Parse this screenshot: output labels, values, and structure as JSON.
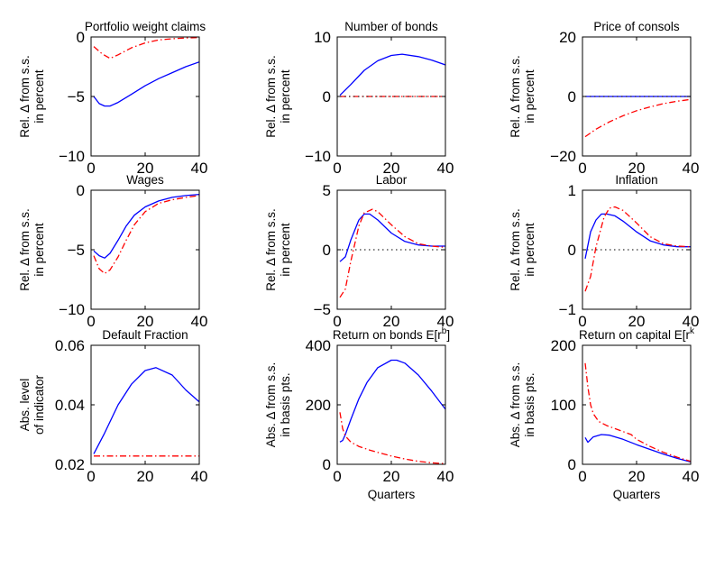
{
  "chart_data": [
    {
      "type": "line",
      "title": "Portfolio weight claims",
      "ylabel": [
        "Rel. Δ from s.s.",
        "in percent"
      ],
      "xlabel": "",
      "xlim": [
        0,
        40
      ],
      "ylim": [
        -10,
        0
      ],
      "xticks": [
        0,
        20,
        40
      ],
      "xtick_labels": [
        "0",
        "20",
        "40"
      ],
      "yticks": [
        -10,
        -5,
        0
      ],
      "ytick_labels": [
        "−10",
        "−5",
        "0"
      ],
      "colors": {
        "blue": "#0000ff",
        "red": "#ff0000"
      },
      "zero_line": false,
      "series": [
        {
          "color": "blue",
          "style": "solid",
          "x": [
            1,
            3,
            5,
            7,
            10,
            15,
            20,
            25,
            30,
            35,
            40
          ],
          "y": [
            -5.0,
            -5.6,
            -5.8,
            -5.8,
            -5.5,
            -4.8,
            -4.1,
            -3.5,
            -3.0,
            -2.5,
            -2.1
          ]
        },
        {
          "color": "red",
          "style": "dashdot",
          "x": [
            1,
            4,
            7,
            10,
            15,
            20,
            25,
            30,
            35,
            40
          ],
          "y": [
            -0.8,
            -1.4,
            -1.8,
            -1.5,
            -0.9,
            -0.5,
            -0.25,
            -0.15,
            -0.08,
            -0.05
          ]
        }
      ]
    },
    {
      "type": "line",
      "title": "Number of bonds",
      "ylabel": [
        "Rel. Δ from s.s.",
        "in percent"
      ],
      "xlabel": "",
      "xlim": [
        0,
        40
      ],
      "ylim": [
        -10,
        10
      ],
      "xticks": [
        0,
        20,
        40
      ],
      "xtick_labels": [
        "0",
        "20",
        "40"
      ],
      "yticks": [
        -10,
        0,
        10
      ],
      "ytick_labels": [
        "−10",
        "0",
        "10"
      ],
      "colors": {
        "blue": "#0000ff",
        "red": "#ff0000"
      },
      "zero_line": false,
      "series": [
        {
          "color": "blue",
          "style": "solid",
          "x": [
            1,
            5,
            10,
            15,
            20,
            24,
            30,
            35,
            40
          ],
          "y": [
            0.2,
            2.0,
            4.4,
            6.0,
            6.9,
            7.1,
            6.7,
            6.1,
            5.3
          ]
        },
        {
          "color": "red",
          "style": "dashdot",
          "x": [
            1,
            40
          ],
          "y": [
            0,
            0
          ]
        },
        {
          "color": "black",
          "style": "dotted",
          "x": [
            1,
            40
          ],
          "y": [
            0,
            0
          ]
        }
      ]
    },
    {
      "type": "line",
      "title": "Price of consols",
      "ylabel": [
        "Rel. Δ from s.s.",
        "in percent"
      ],
      "xlabel": "",
      "xlim": [
        0,
        40
      ],
      "ylim": [
        -20,
        20
      ],
      "xticks": [
        0,
        20,
        40
      ],
      "xtick_labels": [
        "0",
        "20",
        "40"
      ],
      "yticks": [
        -20,
        0,
        20
      ],
      "ytick_labels": [
        "−20",
        "0",
        "20"
      ],
      "colors": {
        "blue": "#0000ff",
        "red": "#ff0000"
      },
      "zero_line": false,
      "series": [
        {
          "color": "blue",
          "style": "solid",
          "x": [
            1,
            40
          ],
          "y": [
            0,
            0
          ]
        },
        {
          "color": "black",
          "style": "dotted",
          "x": [
            1,
            40
          ],
          "y": [
            0,
            0
          ]
        },
        {
          "color": "red",
          "style": "dashdot",
          "x": [
            1,
            5,
            10,
            15,
            20,
            25,
            30,
            35,
            40
          ],
          "y": [
            -13.5,
            -11.0,
            -8.5,
            -6.5,
            -4.8,
            -3.5,
            -2.4,
            -1.6,
            -1.0
          ]
        }
      ]
    },
    {
      "type": "line",
      "title": "Wages",
      "ylabel": [
        "Rel. Δ from s.s.",
        "in percent"
      ],
      "xlabel": "",
      "xlim": [
        0,
        40
      ],
      "ylim": [
        -10,
        0
      ],
      "xticks": [
        0,
        20,
        40
      ],
      "xtick_labels": [
        "0",
        "20",
        "40"
      ],
      "yticks": [
        -10,
        -5,
        0
      ],
      "ytick_labels": [
        "−10",
        "−5",
        "0"
      ],
      "colors": {
        "blue": "#0000ff",
        "red": "#ff0000"
      },
      "zero_line": true,
      "series": [
        {
          "color": "blue",
          "style": "solid",
          "x": [
            1,
            3,
            5,
            7,
            10,
            13,
            16,
            20,
            25,
            30,
            35,
            40
          ],
          "y": [
            -5.1,
            -5.5,
            -5.7,
            -5.3,
            -4.2,
            -3.0,
            -2.1,
            -1.4,
            -0.9,
            -0.6,
            -0.45,
            -0.35
          ]
        },
        {
          "color": "red",
          "style": "dashdot",
          "x": [
            1,
            3,
            5,
            7,
            10,
            13,
            16,
            20,
            25,
            30,
            35,
            40
          ],
          "y": [
            -5.5,
            -6.6,
            -7.0,
            -6.7,
            -5.6,
            -4.2,
            -2.9,
            -1.8,
            -1.1,
            -0.8,
            -0.6,
            -0.45
          ]
        }
      ]
    },
    {
      "type": "line",
      "title": "Labor",
      "ylabel": [
        "Rel. Δ from s.s.",
        "in percent"
      ],
      "xlabel": "",
      "xlim": [
        0,
        40
      ],
      "ylim": [
        -5,
        5
      ],
      "xticks": [
        0,
        20,
        40
      ],
      "xtick_labels": [
        "0",
        "20",
        "40"
      ],
      "yticks": [
        -5,
        0,
        5
      ],
      "ytick_labels": [
        "−5",
        "0",
        "5"
      ],
      "colors": {
        "blue": "#0000ff",
        "red": "#ff0000"
      },
      "zero_line": true,
      "series": [
        {
          "color": "blue",
          "style": "solid",
          "x": [
            1,
            3,
            5,
            8,
            10,
            12,
            15,
            20,
            25,
            30,
            35,
            40
          ],
          "y": [
            -1.0,
            -0.6,
            0.8,
            2.5,
            3.0,
            3.0,
            2.5,
            1.4,
            0.7,
            0.4,
            0.3,
            0.3
          ]
        },
        {
          "color": "red",
          "style": "dashdot",
          "x": [
            1,
            3,
            5,
            8,
            10,
            13,
            15,
            20,
            25,
            30,
            35,
            40
          ],
          "y": [
            -4.0,
            -3.3,
            -1.0,
            2.0,
            3.1,
            3.4,
            3.2,
            2.1,
            1.1,
            0.5,
            0.3,
            0.2
          ]
        }
      ]
    },
    {
      "type": "line",
      "title": "Inflation",
      "ylabel": [
        "Rel. Δ from s.s.",
        "in percent"
      ],
      "xlabel": "",
      "xlim": [
        0,
        40
      ],
      "ylim": [
        -1,
        1
      ],
      "xticks": [
        0,
        20,
        40
      ],
      "xtick_labels": [
        "0",
        "20",
        "40"
      ],
      "yticks": [
        -1,
        0,
        1
      ],
      "ytick_labels": [
        "−1",
        "0",
        "1"
      ],
      "colors": {
        "blue": "#0000ff",
        "red": "#ff0000"
      },
      "zero_line": true,
      "series": [
        {
          "color": "blue",
          "style": "solid",
          "x": [
            1,
            3,
            5,
            7,
            9,
            12,
            15,
            20,
            25,
            30,
            35,
            40
          ],
          "y": [
            -0.15,
            0.3,
            0.5,
            0.6,
            0.6,
            0.57,
            0.48,
            0.3,
            0.15,
            0.08,
            0.05,
            0.05
          ]
        },
        {
          "color": "red",
          "style": "dashdot",
          "x": [
            1,
            3,
            5,
            8,
            10,
            12,
            15,
            20,
            25,
            30,
            35,
            40
          ],
          "y": [
            -0.7,
            -0.45,
            0.05,
            0.55,
            0.7,
            0.72,
            0.66,
            0.45,
            0.22,
            0.1,
            0.06,
            0.05
          ]
        }
      ]
    },
    {
      "type": "line",
      "title": "Default Fraction",
      "ylabel": [
        "Abs. level",
        "of indicator"
      ],
      "xlabel": "",
      "xlim": [
        0,
        40
      ],
      "ylim": [
        0.02,
        0.06
      ],
      "xticks": [
        0,
        20,
        40
      ],
      "xtick_labels": [
        "0",
        "20",
        "40"
      ],
      "yticks": [
        0.02,
        0.04,
        0.06
      ],
      "ytick_labels": [
        "0.02",
        "0.04",
        "0.06"
      ],
      "colors": {
        "blue": "#0000ff",
        "red": "#ff0000"
      },
      "zero_line": false,
      "series": [
        {
          "color": "blue",
          "style": "solid",
          "x": [
            1,
            5,
            10,
            15,
            20,
            24,
            30,
            35,
            40
          ],
          "y": [
            0.0235,
            0.0305,
            0.04,
            0.047,
            0.0515,
            0.0525,
            0.05,
            0.045,
            0.041
          ]
        },
        {
          "color": "red",
          "style": "dashdot",
          "x": [
            1,
            40
          ],
          "y": [
            0.0228,
            0.0228
          ]
        }
      ]
    },
    {
      "type": "line",
      "title": "Return on bonds E[r^b]",
      "title_main": "Return on bonds E[r",
      "title_sup": "b",
      "title_end": "]",
      "ylabel": [
        "Abs. Δ from s.s.",
        "in basis pts."
      ],
      "xlabel": "Quarters",
      "xlim": [
        0,
        40
      ],
      "ylim": [
        0,
        400
      ],
      "xticks": [
        0,
        20,
        40
      ],
      "xtick_labels": [
        "0",
        "20",
        "40"
      ],
      "yticks": [
        0,
        200,
        400
      ],
      "ytick_labels": [
        "0",
        "200",
        "400"
      ],
      "colors": {
        "blue": "#0000ff",
        "red": "#ff0000"
      },
      "zero_line": false,
      "series": [
        {
          "color": "blue",
          "style": "solid",
          "x": [
            1,
            2,
            3,
            5,
            8,
            11,
            15,
            20,
            22,
            25,
            30,
            35,
            40
          ],
          "y": [
            75,
            80,
            100,
            150,
            220,
            275,
            325,
            350,
            350,
            340,
            300,
            245,
            185
          ]
        },
        {
          "color": "red",
          "style": "dashdot",
          "x": [
            1,
            2,
            3,
            5,
            8,
            12,
            15,
            20,
            25,
            30,
            35,
            40
          ],
          "y": [
            175,
            120,
            95,
            75,
            60,
            48,
            40,
            28,
            18,
            10,
            5,
            2
          ]
        }
      ]
    },
    {
      "type": "line",
      "title": "Return on capital E[r^k]",
      "title_main": "Return on capital E[r",
      "title_sup": "k",
      "title_end": "",
      "ylabel": [
        "Abs. Δ from s.s.",
        "in basis pts."
      ],
      "xlabel": "Quarters",
      "xlim": [
        0,
        40
      ],
      "ylim": [
        0,
        200
      ],
      "xticks": [
        0,
        20,
        40
      ],
      "xtick_labels": [
        "0",
        "20",
        "40"
      ],
      "yticks": [
        0,
        100,
        200
      ],
      "ytick_labels": [
        "0",
        "100",
        "200"
      ],
      "colors": {
        "blue": "#0000ff",
        "red": "#ff0000"
      },
      "zero_line": false,
      "series": [
        {
          "color": "blue",
          "style": "solid",
          "x": [
            1,
            2,
            4,
            7,
            10,
            15,
            20,
            25,
            30,
            35,
            40
          ],
          "y": [
            45,
            37,
            46,
            50,
            49,
            42,
            33,
            25,
            17,
            10,
            4
          ]
        },
        {
          "color": "red",
          "style": "dashdot",
          "x": [
            1,
            2,
            3,
            4,
            6,
            9,
            12,
            15,
            18,
            20,
            25,
            30,
            35,
            40
          ],
          "y": [
            170,
            130,
            100,
            85,
            72,
            65,
            60,
            55,
            50,
            42,
            30,
            20,
            12,
            5
          ]
        }
      ]
    }
  ]
}
